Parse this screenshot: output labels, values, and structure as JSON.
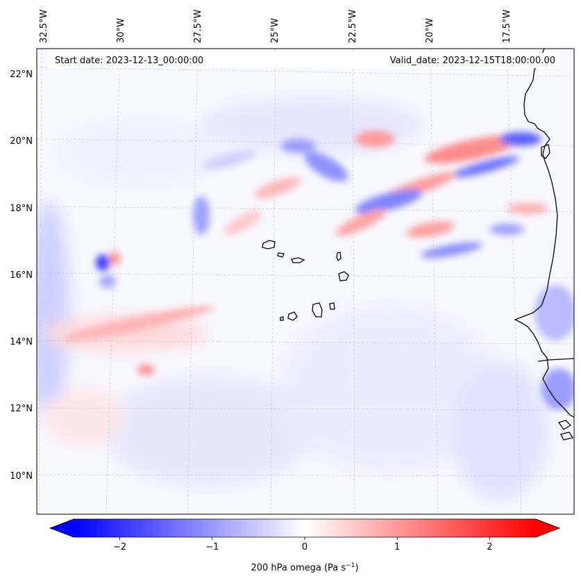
{
  "map": {
    "start_date_label": "Start date: 2023-12-13_00:00:00",
    "valid_date_label": "Valid_date: 2023-12-15T18:00:00.00",
    "lon_labels": [
      "32.5°W",
      "30°W",
      "27.5°W",
      "25°W",
      "22.5°W",
      "20°W",
      "17.5°W"
    ],
    "lat_labels": [
      "22°N",
      "20°N",
      "18°N",
      "16°N",
      "14°N",
      "12°N",
      "10°N"
    ],
    "extent": {
      "lon_min": -33.0,
      "lon_max": -15.0,
      "lat_min": 8.8,
      "lat_max": 22.8
    }
  },
  "colorbar": {
    "label_text": "200 hPa omega (Pa s",
    "label_exponent": "−1",
    "label_suffix": ")",
    "ticks": [
      "−2",
      "−1",
      "0",
      "1",
      "2"
    ],
    "tick_values": [
      -2,
      -1,
      0,
      1,
      2
    ],
    "range": [
      -2.5,
      2.5
    ],
    "colors": {
      "negative": "#0000ff",
      "zero": "#ffffff",
      "positive": "#ff0000"
    }
  }
}
